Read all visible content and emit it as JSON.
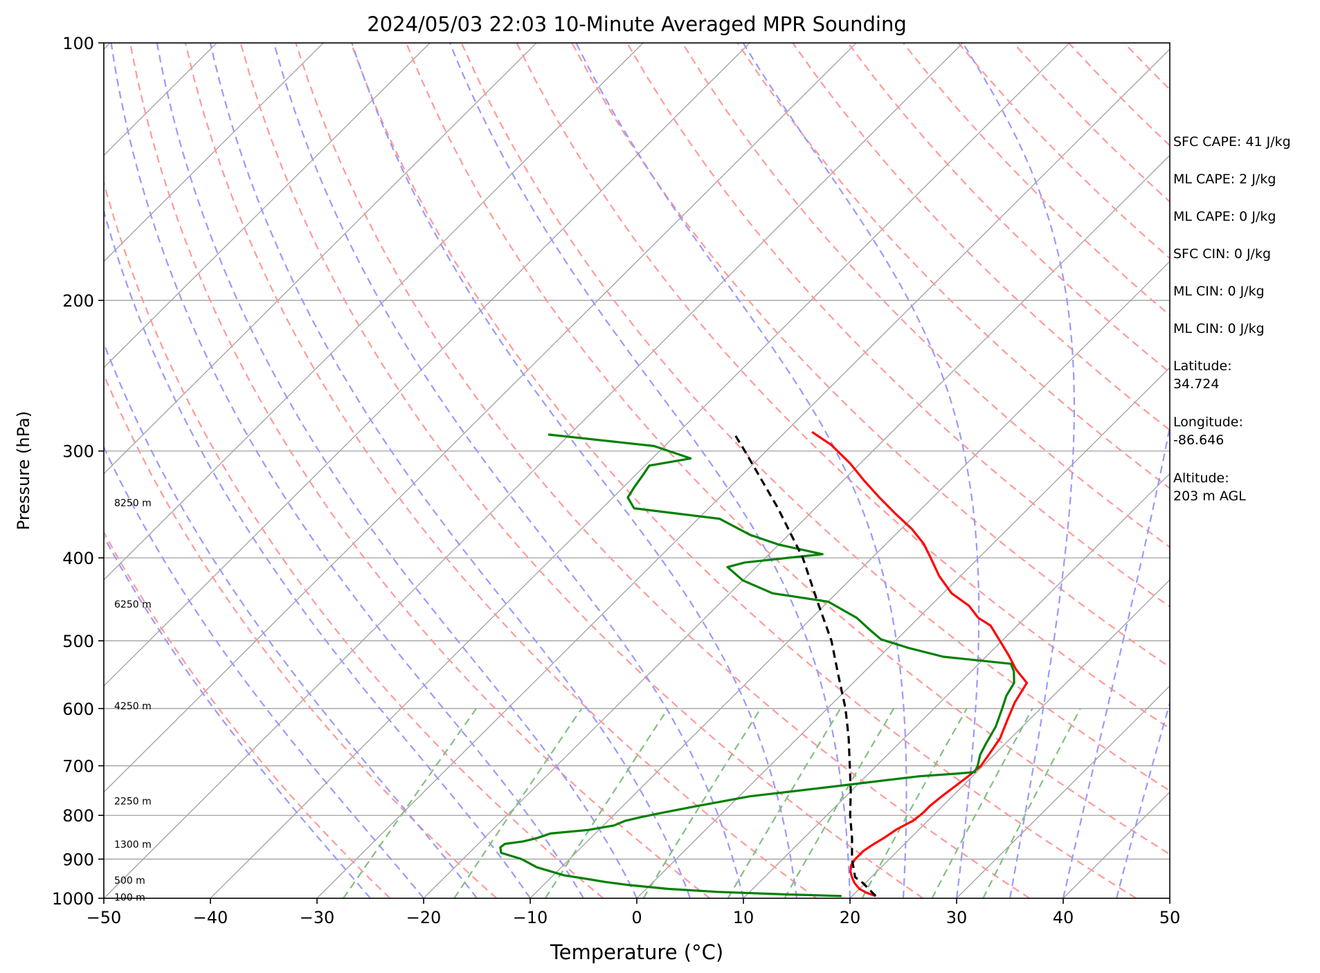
{
  "chart_data": {
    "type": "line",
    "title": "2024/05/03 22:03 10-Minute Averaged MPR Sounding",
    "xlabel": "Temperature (°C)",
    "ylabel": "Pressure (hPa)",
    "xlim": [
      -50,
      50
    ],
    "ylim": [
      1000,
      100
    ],
    "y_scale": "log",
    "x_ticks": [
      -50,
      -40,
      -30,
      -20,
      -10,
      0,
      10,
      20,
      30,
      40,
      50
    ],
    "x_tick_labels": [
      "−50",
      "−40",
      "−30",
      "−20",
      "−10",
      "0",
      "10",
      "20",
      "30",
      "40",
      "50"
    ],
    "y_ticks": [
      1000,
      900,
      800,
      700,
      600,
      500,
      400,
      300,
      200,
      100
    ],
    "y_tick_labels": [
      "1000",
      "900",
      "800",
      "700",
      "600",
      "500",
      "400",
      "300",
      "200",
      "100"
    ],
    "grid": "horizontal isobars at tick pressures; skewed isotherms; dry adiabats (red dashed), moist adiabats (blue dashed), mixing ratio lines (green dashed)",
    "isotherms_c": [
      -140,
      -130,
      -120,
      -110,
      -100,
      -90,
      -80,
      -70,
      -60,
      -50,
      -40,
      -30,
      -20,
      -10,
      0,
      10,
      20,
      30,
      40,
      50
    ],
    "dry_adiabats_k": [
      250,
      260,
      270,
      280,
      290,
      300,
      310,
      320,
      330,
      340,
      350,
      360,
      370,
      380,
      390,
      400,
      410,
      420,
      430,
      440,
      450,
      460,
      470,
      480,
      490,
      500
    ],
    "moist_adiabats_sfc_c": [
      -25,
      -20,
      -15,
      -10,
      -5,
      0,
      5,
      10,
      15,
      20,
      25,
      30,
      35,
      40,
      45
    ],
    "mixing_ratio_gkg": [
      0.4,
      1,
      2,
      4,
      7,
      10,
      16,
      24,
      32
    ],
    "series": [
      {
        "key": "temperature",
        "color": "#ff0000",
        "points": [
          {
            "p": 994,
            "t": 22.2
          },
          {
            "p": 985,
            "t": 21.0
          },
          {
            "p": 975,
            "t": 20.0
          },
          {
            "p": 960,
            "t": 19.0
          },
          {
            "p": 945,
            "t": 18.2
          },
          {
            "p": 930,
            "t": 17.5
          },
          {
            "p": 915,
            "t": 17.0
          },
          {
            "p": 900,
            "t": 16.8
          },
          {
            "p": 880,
            "t": 16.8
          },
          {
            "p": 865,
            "t": 17.1
          },
          {
            "p": 850,
            "t": 17.5
          },
          {
            "p": 830,
            "t": 17.9
          },
          {
            "p": 812,
            "t": 18.6
          },
          {
            "p": 795,
            "t": 18.8
          },
          {
            "p": 780,
            "t": 18.8
          },
          {
            "p": 760,
            "t": 19.0
          },
          {
            "p": 740,
            "t": 19.3
          },
          {
            "p": 720,
            "t": 19.6
          },
          {
            "p": 700,
            "t": 19.8
          },
          {
            "p": 680,
            "t": 19.5
          },
          {
            "p": 650,
            "t": 19.0
          },
          {
            "p": 620,
            "t": 18.0
          },
          {
            "p": 590,
            "t": 17.0
          },
          {
            "p": 560,
            "t": 16.3
          },
          {
            "p": 540,
            "t": 14.0
          },
          {
            "p": 520,
            "t": 12.0
          },
          {
            "p": 500,
            "t": 9.8
          },
          {
            "p": 480,
            "t": 7.5
          },
          {
            "p": 470,
            "t": 5.6
          },
          {
            "p": 455,
            "t": 3.6
          },
          {
            "p": 440,
            "t": 0.8
          },
          {
            "p": 420,
            "t": -2.0
          },
          {
            "p": 400,
            "t": -4.5
          },
          {
            "p": 385,
            "t": -6.5
          },
          {
            "p": 370,
            "t": -9.0
          },
          {
            "p": 355,
            "t": -12.0
          },
          {
            "p": 340,
            "t": -15.0
          },
          {
            "p": 325,
            "t": -18.0
          },
          {
            "p": 310,
            "t": -21.0
          },
          {
            "p": 295,
            "t": -24.5
          },
          {
            "p": 285,
            "t": -27.5
          }
        ]
      },
      {
        "key": "dewpoint",
        "color": "#008000",
        "points": [
          {
            "p": 994,
            "t": 19.0
          },
          {
            "p": 990,
            "t": 14.0
          },
          {
            "p": 983,
            "t": 7.0
          },
          {
            "p": 975,
            "t": 2.0
          },
          {
            "p": 965,
            "t": -2.0
          },
          {
            "p": 957,
            "t": -4.5
          },
          {
            "p": 950,
            "t": -6.3
          },
          {
            "p": 940,
            "t": -9.0
          },
          {
            "p": 920,
            "t": -12.3
          },
          {
            "p": 900,
            "t": -14.5
          },
          {
            "p": 885,
            "t": -17.0
          },
          {
            "p": 872,
            "t": -17.6
          },
          {
            "p": 864,
            "t": -17.5
          },
          {
            "p": 858,
            "t": -16.0
          },
          {
            "p": 850,
            "t": -15.0
          },
          {
            "p": 840,
            "t": -14.2
          },
          {
            "p": 832,
            "t": -11.0
          },
          {
            "p": 822,
            "t": -9.0
          },
          {
            "p": 812,
            "t": -8.4
          },
          {
            "p": 804,
            "t": -7.3
          },
          {
            "p": 795,
            "t": -5.8
          },
          {
            "p": 780,
            "t": -3.0
          },
          {
            "p": 760,
            "t": 1.0
          },
          {
            "p": 740,
            "t": 8.0
          },
          {
            "p": 720,
            "t": 15.0
          },
          {
            "p": 715,
            "t": 18.3
          },
          {
            "p": 712,
            "t": 19.8
          },
          {
            "p": 700,
            "t": 19.5
          },
          {
            "p": 680,
            "t": 18.7
          },
          {
            "p": 660,
            "t": 18.2
          },
          {
            "p": 630,
            "t": 17.5
          },
          {
            "p": 600,
            "t": 16.4
          },
          {
            "p": 580,
            "t": 15.6
          },
          {
            "p": 560,
            "t": 15.1
          },
          {
            "p": 543,
            "t": 14.0
          },
          {
            "p": 532,
            "t": 13.0
          },
          {
            "p": 522,
            "t": 6.0
          },
          {
            "p": 510,
            "t": 2.0
          },
          {
            "p": 498,
            "t": -1.5
          },
          {
            "p": 485,
            "t": -3.5
          },
          {
            "p": 470,
            "t": -5.8
          },
          {
            "p": 450,
            "t": -10.0
          },
          {
            "p": 440,
            "t": -16.0
          },
          {
            "p": 425,
            "t": -20.0
          },
          {
            "p": 410,
            "t": -22.7
          },
          {
            "p": 405,
            "t": -21.5
          },
          {
            "p": 396,
            "t": -15.0
          },
          {
            "p": 386,
            "t": -20.0
          },
          {
            "p": 376,
            "t": -23.6
          },
          {
            "p": 360,
            "t": -28.0
          },
          {
            "p": 350,
            "t": -37.0
          },
          {
            "p": 340,
            "t": -38.6
          },
          {
            "p": 330,
            "t": -39.0
          },
          {
            "p": 320,
            "t": -39.3
          },
          {
            "p": 312,
            "t": -39.6
          },
          {
            "p": 306,
            "t": -36.4
          },
          {
            "p": 296,
            "t": -41.0
          },
          {
            "p": 287,
            "t": -52.0
          }
        ]
      },
      {
        "key": "parcel",
        "color": "#000000",
        "dashed": true,
        "points": [
          {
            "p": 994,
            "t": 22.2
          },
          {
            "p": 960,
            "t": 19.8
          },
          {
            "p": 945,
            "t": 18.5
          },
          {
            "p": 900,
            "t": 16.5
          },
          {
            "p": 850,
            "t": 14.5
          },
          {
            "p": 800,
            "t": 12.2
          },
          {
            "p": 750,
            "t": 10.0
          },
          {
            "p": 700,
            "t": 7.5
          },
          {
            "p": 650,
            "t": 4.8
          },
          {
            "p": 600,
            "t": 1.7
          },
          {
            "p": 550,
            "t": -2.0
          },
          {
            "p": 500,
            "t": -6.0
          },
          {
            "p": 450,
            "t": -11.0
          },
          {
            "p": 400,
            "t": -16.5
          },
          {
            "p": 350,
            "t": -23.5
          },
          {
            "p": 300,
            "t": -32.0
          },
          {
            "p": 287,
            "t": -34.5
          }
        ]
      }
    ],
    "height_labels": [
      {
        "text": "100 m",
        "p": 997
      },
      {
        "text": "500 m",
        "p": 953
      },
      {
        "text": "1300 m",
        "p": 865
      },
      {
        "text": "2250 m",
        "p": 770
      },
      {
        "text": "4250 m",
        "p": 596
      },
      {
        "text": "6250 m",
        "p": 453
      },
      {
        "text": "8250 m",
        "p": 345
      }
    ]
  },
  "info_panel": [
    "SFC CAPE: 41 J/kg",
    "ML CAPE: 2 J/kg",
    "ML CAPE: 0 J/kg",
    "SFC CIN: 0 J/kg",
    "ML CIN: 0 J/kg",
    "ML CIN: 0 J/kg",
    "Latitude:\n34.724",
    "Longitude:\n-86.646",
    "Altitude:\n203 m AGL"
  ],
  "colors": {
    "dry_adiabat": "#ff9999",
    "moist_adiabat": "#9999ff",
    "mixing_ratio": "#80c080",
    "isotherm": "#a0a0a0",
    "isobar": "#a0a0a0"
  }
}
